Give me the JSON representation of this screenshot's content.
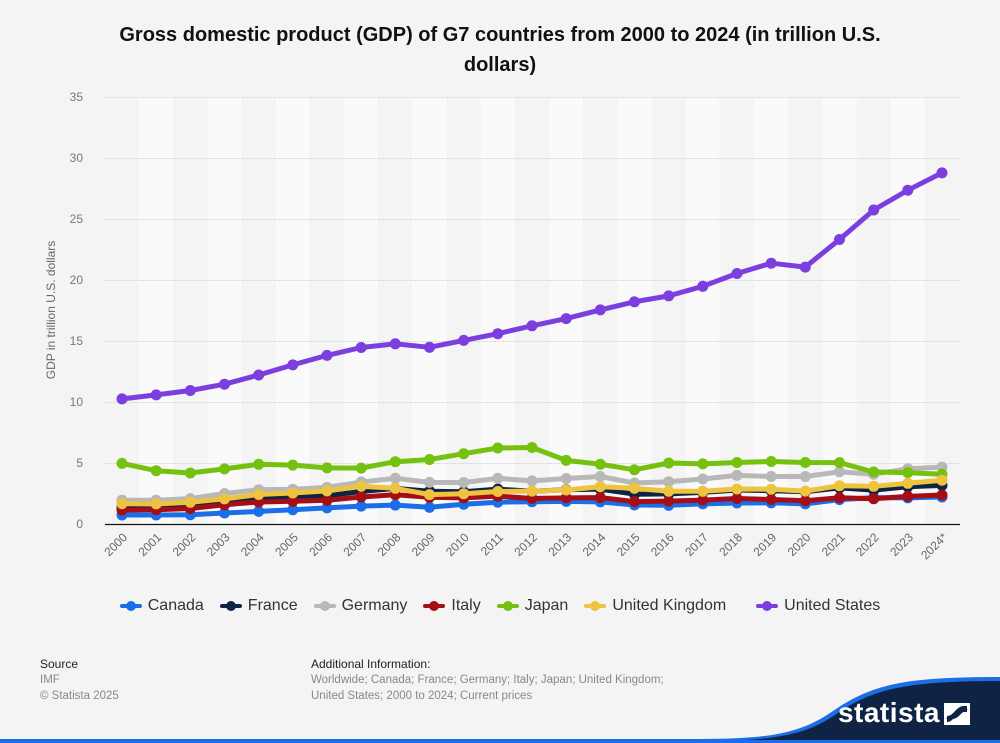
{
  "title": "Gross domestic product (GDP) of G7 countries from 2000 to 2024 (in trillion U.S. dollars)",
  "chart_data": {
    "type": "line",
    "title": "Gross domestic product (GDP) of G7 countries from 2000 to 2024 (in trillion U.S. dollars)",
    "xlabel": "",
    "ylabel": "GDP in trillion U.S. dollars",
    "ylim": [
      0,
      35
    ],
    "yticks": [
      0,
      5,
      10,
      15,
      20,
      25,
      30,
      35
    ],
    "grid": true,
    "legend_position": "bottom",
    "categories": [
      "2000",
      "2001",
      "2002",
      "2003",
      "2004",
      "2005",
      "2006",
      "2007",
      "2008",
      "2009",
      "2010",
      "2011",
      "2012",
      "2013",
      "2014",
      "2015",
      "2016",
      "2017",
      "2018",
      "2019",
      "2020",
      "2021",
      "2022",
      "2023",
      "2024*"
    ],
    "series": [
      {
        "name": "Canada",
        "color": "#1a6fe8",
        "values": [
          0.74,
          0.74,
          0.76,
          0.9,
          1.03,
          1.17,
          1.32,
          1.47,
          1.55,
          1.37,
          1.62,
          1.79,
          1.83,
          1.85,
          1.81,
          1.56,
          1.53,
          1.65,
          1.72,
          1.74,
          1.65,
          2.0,
          2.16,
          2.14,
          2.21
        ]
      },
      {
        "name": "France",
        "color": "#0f2444",
        "values": [
          1.36,
          1.38,
          1.49,
          1.84,
          2.12,
          2.2,
          2.32,
          2.66,
          2.92,
          2.69,
          2.64,
          2.86,
          2.68,
          2.81,
          2.86,
          2.44,
          2.47,
          2.59,
          2.79,
          2.73,
          2.64,
          2.96,
          2.78,
          3.05,
          3.16
        ]
      },
      {
        "name": "Germany",
        "color": "#b8b8b8",
        "values": [
          1.95,
          1.95,
          2.08,
          2.5,
          2.81,
          2.85,
          3.0,
          3.44,
          3.75,
          3.41,
          3.4,
          3.75,
          3.53,
          3.73,
          3.89,
          3.36,
          3.47,
          3.69,
          3.98,
          3.89,
          3.89,
          4.28,
          4.08,
          4.53,
          4.66
        ]
      },
      {
        "name": "Italy",
        "color": "#a50e15",
        "values": [
          1.14,
          1.17,
          1.27,
          1.57,
          1.8,
          1.86,
          1.95,
          2.21,
          2.4,
          2.19,
          2.14,
          2.29,
          2.09,
          2.14,
          2.16,
          1.84,
          1.88,
          1.96,
          2.09,
          2.01,
          1.9,
          2.15,
          2.07,
          2.26,
          2.38
        ]
      },
      {
        "name": "Japan",
        "color": "#74c10f",
        "values": [
          4.97,
          4.37,
          4.18,
          4.52,
          4.89,
          4.83,
          4.6,
          4.58,
          5.11,
          5.29,
          5.76,
          6.23,
          6.27,
          5.21,
          4.9,
          4.44,
          5.0,
          4.93,
          5.04,
          5.12,
          5.04,
          5.03,
          4.26,
          4.21,
          4.07
        ]
      },
      {
        "name": "United Kingdom",
        "color": "#eec33f",
        "values": [
          1.66,
          1.64,
          1.78,
          2.06,
          2.42,
          2.54,
          2.71,
          3.1,
          2.93,
          2.41,
          2.48,
          2.66,
          2.7,
          2.79,
          3.06,
          2.93,
          2.69,
          2.68,
          2.87,
          2.85,
          2.7,
          3.14,
          3.09,
          3.34,
          3.59
        ]
      },
      {
        "name": "United States",
        "color": "#7b3fe0",
        "values": [
          10.25,
          10.58,
          10.94,
          11.46,
          12.21,
          13.04,
          13.82,
          14.47,
          14.77,
          14.48,
          15.05,
          15.6,
          16.25,
          16.84,
          17.55,
          18.21,
          18.7,
          19.48,
          20.53,
          21.38,
          21.06,
          23.32,
          25.74,
          27.36,
          28.78
        ]
      }
    ]
  },
  "legend": [
    {
      "label": "Canada",
      "color": "#1a6fe8"
    },
    {
      "label": "France",
      "color": "#0f2444"
    },
    {
      "label": "Germany",
      "color": "#b8b8b8"
    },
    {
      "label": "Italy",
      "color": "#a50e15"
    },
    {
      "label": "Japan",
      "color": "#74c10f"
    },
    {
      "label": "United Kingdom",
      "color": "#eec33f"
    },
    {
      "label": "United States",
      "color": "#7b3fe0"
    }
  ],
  "footer": {
    "source_heading": "Source",
    "source": "IMF",
    "copyright": "© Statista 2025",
    "additional_heading": "Additional Information:",
    "additional_line1": "Worldwide; Canada; France; Germany; Italy; Japan; United Kingdom;",
    "additional_line2": "United States; 2000 to 2024; Current prices"
  },
  "brand": {
    "name": "statista",
    "dark_color": "#0f2444",
    "accent_color": "#1a6fe8"
  }
}
